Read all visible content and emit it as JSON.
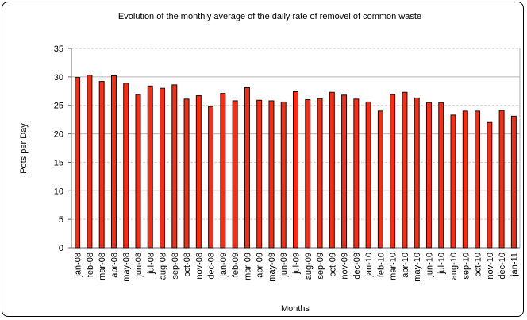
{
  "chart_data": {
    "type": "bar",
    "title": "Evolution of the monthly average of the daily rate of removel of common waste",
    "xlabel": "Months",
    "ylabel": "Pots per Day",
    "ylim": [
      0,
      35
    ],
    "yticks": [
      0,
      5,
      10,
      15,
      20,
      25,
      30,
      35
    ],
    "grid": true,
    "bar_color": "#ff2a0f",
    "categories": [
      "jan-08",
      "feb-08",
      "mar-08",
      "apr-08",
      "may-08",
      "jun-08",
      "jul-08",
      "aug-08",
      "sep-08",
      "oct-08",
      "nov-08",
      "dec-08",
      "jan-09",
      "feb-09",
      "mar-09",
      "apr-09",
      "may-09",
      "jun-09",
      "jul-09",
      "aug-09",
      "sep-09",
      "oct-09",
      "nov-09",
      "dec-09",
      "jan-10",
      "feb-10",
      "mar-10",
      "apr-10",
      "may-10",
      "jun-10",
      "jul-10",
      "aug-10",
      "sep-10",
      "oct-10",
      "nov-10",
      "dec-10",
      "jan-11"
    ],
    "values": [
      29.9,
      30.3,
      29.2,
      30.2,
      28.9,
      26.9,
      28.4,
      28.0,
      28.6,
      26.1,
      26.7,
      24.8,
      27.1,
      25.8,
      28.1,
      25.9,
      25.8,
      25.6,
      27.4,
      26.0,
      26.2,
      27.3,
      26.8,
      26.1,
      25.6,
      24.0,
      26.9,
      27.3,
      26.3,
      25.5,
      25.5,
      23.3,
      24.0,
      24.0,
      22.0,
      24.1,
      23.1
    ]
  }
}
